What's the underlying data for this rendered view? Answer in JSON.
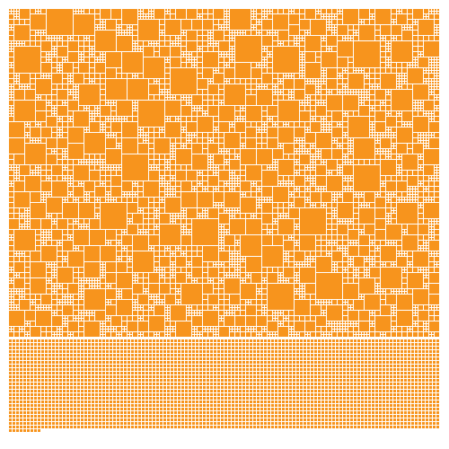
{
  "mosaic": {
    "fill_color": "#F7941D",
    "background_color": "#FFFFFF",
    "gap_color": "#FFFFFF"
  }
}
